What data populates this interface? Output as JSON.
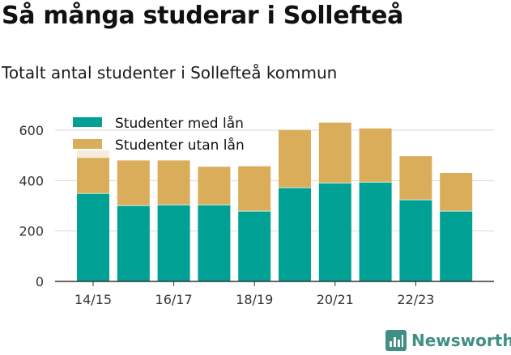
{
  "header": {
    "title": "Så många studerar i Sollefteå",
    "subtitle": "Totalt antal studenter i Sollefteå kommun"
  },
  "branding": {
    "name": "Newsworthy",
    "icon": "bar-chart-logo-icon"
  },
  "chart_data": {
    "type": "bar",
    "stacked": true,
    "categories": [
      "14/15",
      "15/16",
      "16/17",
      "17/18",
      "18/19",
      "19/20",
      "20/21",
      "21/22",
      "22/23",
      "23/24"
    ],
    "tick_labels": [
      "14/15",
      "",
      "16/17",
      "",
      "18/19",
      "",
      "20/21",
      "",
      "22/23",
      ""
    ],
    "series": [
      {
        "name": "Studenter med lån",
        "color": "#00a095",
        "values": [
          350,
          302,
          305,
          305,
          280,
          373,
          392,
          395,
          325,
          280
        ]
      },
      {
        "name": "Studenter utan lån",
        "color": "#d9ad5a",
        "values": [
          140,
          178,
          175,
          150,
          177,
          228,
          238,
          212,
          172,
          150
        ]
      }
    ],
    "ghost": {
      "category": "14/15",
      "value": 520,
      "color": "#f6ecdc"
    },
    "y_ticks": [
      0,
      200,
      400,
      600
    ],
    "ylim": [
      0,
      660
    ],
    "grid": true,
    "legend": "top-left"
  }
}
